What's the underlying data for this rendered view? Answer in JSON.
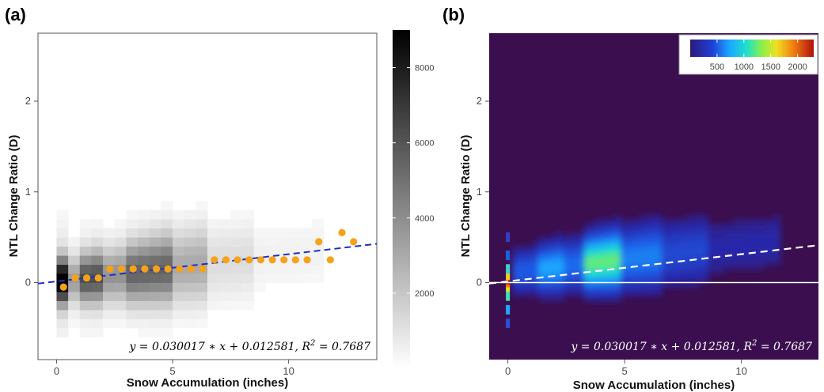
{
  "chart_data": [
    {
      "panel_label": "(a)",
      "type": "heatmap",
      "xlabel": "Snow Accumulation (inches)",
      "ylabel": "NTL Change Ratio (D)",
      "xlim": [
        -0.8,
        13.8
      ],
      "ylim": [
        -0.85,
        2.75
      ],
      "xticks": [
        0,
        5,
        10
      ],
      "yticks": [
        0,
        1,
        2
      ],
      "grid": false,
      "colormap": "grayscale",
      "colorbar": {
        "range": [
          0,
          9000
        ],
        "ticks": [
          2000,
          4000,
          6000,
          8000
        ],
        "position": "right"
      },
      "binned_means": {
        "color": "#f5a21b",
        "x": [
          0.3,
          0.8,
          1.3,
          1.8,
          2.3,
          2.8,
          3.3,
          3.8,
          4.3,
          4.8,
          5.3,
          5.8,
          6.3,
          6.8,
          7.3,
          7.8,
          8.3,
          8.8,
          9.3,
          9.8,
          10.3,
          10.8,
          11.3,
          11.8,
          12.3,
          12.8
        ],
        "y": [
          -0.05,
          0.05,
          0.05,
          0.05,
          0.15,
          0.15,
          0.15,
          0.15,
          0.15,
          0.15,
          0.15,
          0.15,
          0.15,
          0.25,
          0.25,
          0.25,
          0.25,
          0.25,
          0.25,
          0.25,
          0.25,
          0.25,
          0.45,
          0.25,
          0.55,
          0.45
        ]
      },
      "fit_line": {
        "slope": 0.030017,
        "intercept": 0.012581,
        "x_range": [
          -0.8,
          13.8
        ],
        "color": "#1f2fbf",
        "style": "dashed"
      },
      "equation": {
        "lhs": "y",
        "rhs": "0.030017 ∗ x + 0.012581, ",
        "r_label": "R",
        "r_exp": "2",
        "r_value": " = 0.7687",
        "position": "bottom-right"
      }
    },
    {
      "panel_label": "(b)",
      "type": "heatmap",
      "xlabel": "Snow Accumulation (inches)",
      "ylabel": "NTL Change Ratio (D)",
      "xlim": [
        -0.8,
        13.3
      ],
      "ylim": [
        -0.85,
        2.75
      ],
      "xticks": [
        0,
        5,
        10
      ],
      "yticks": [
        0,
        1,
        2
      ],
      "grid": false,
      "colormap": "jet",
      "background": "#3b0f4f",
      "colorbar": {
        "range": [
          0,
          2300
        ],
        "ticks": [
          500,
          1000,
          1500,
          2000
        ],
        "position": "top-right"
      },
      "fit_line": {
        "slope": 0.030017,
        "intercept": 0.012581,
        "x_range": [
          -0.8,
          13.3
        ],
        "color": "#ffffff",
        "style": "dashed"
      },
      "reference_line": {
        "y": 0,
        "color": "#ffffff"
      },
      "equation": {
        "lhs": "y",
        "rhs": "0.030017 ∗ x + 0.012581, ",
        "r_label": "R",
        "r_exp": "2",
        "r_value": " = 0.7687",
        "position": "bottom-right"
      }
    }
  ]
}
